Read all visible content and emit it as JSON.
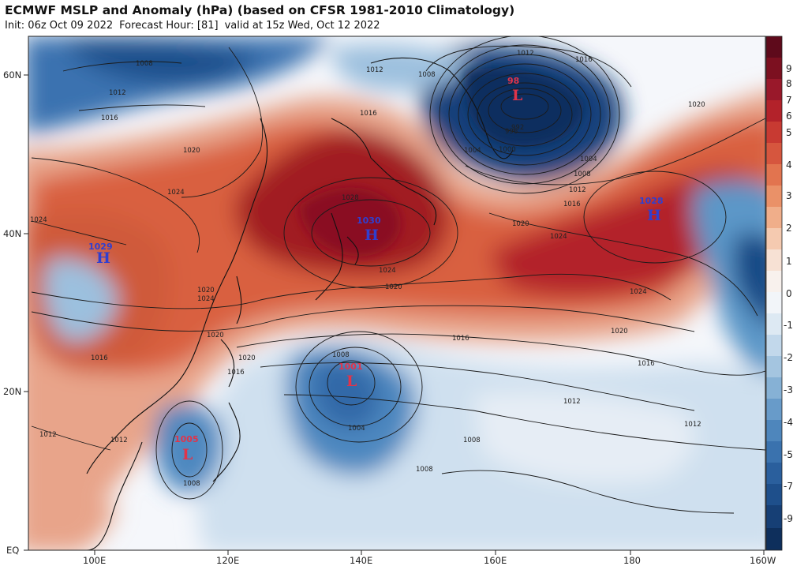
{
  "header": {
    "title": "ECMWF MSLP and Anomaly (hPa) (based on CFSR 1981-2010 Climatology)",
    "init": "Init: 06z Oct 09 2022",
    "forecast_hour": "Forecast Hour: [81]",
    "valid": "valid at 15z Wed, Oct 12 2022"
  },
  "axes": {
    "y_ticks": [
      "60N",
      "40N",
      "20N",
      "EQ"
    ],
    "x_ticks": [
      "100E",
      "120E",
      "140E",
      "160E",
      "180",
      "160W"
    ]
  },
  "colorbar": {
    "labels": [
      "9",
      "8",
      "7",
      "6",
      "5",
      "4",
      "3",
      "2",
      "1",
      "0",
      "-1",
      "-2",
      "-3",
      "-4",
      "-5",
      "-7",
      "-9"
    ]
  },
  "pressure_centers": [
    {
      "letter": "H",
      "value": "1030",
      "color": "#2f3fd0"
    },
    {
      "letter": "H",
      "value": "1028",
      "color": "#2f3fd0"
    },
    {
      "letter": "H",
      "value": "1029",
      "color": "#2f3fd0"
    },
    {
      "letter": "L",
      "value": "98",
      "color": "#e0344a"
    },
    {
      "letter": "L",
      "value": "1001",
      "color": "#e0344a"
    },
    {
      "letter": "L",
      "value": "1005",
      "color": "#e0344a"
    }
  ],
  "isobar_labels": [
    "1008",
    "1012",
    "1016",
    "1020",
    "1024",
    "1028",
    "1024",
    "1020",
    "1016",
    "1012",
    "1008",
    "1004",
    "1000",
    "996",
    "992",
    "1004",
    "1008",
    "1012",
    "1016",
    "1020",
    "1024",
    "1020",
    "1016",
    "1012",
    "1008",
    "1004",
    "1008",
    "1012",
    "1016",
    "1020",
    "1024",
    "1024",
    "1020",
    "1016",
    "1012",
    "1008",
    "1012",
    "1016",
    "1020",
    "1024",
    "1008",
    "1012",
    "1016",
    "1020"
  ]
}
